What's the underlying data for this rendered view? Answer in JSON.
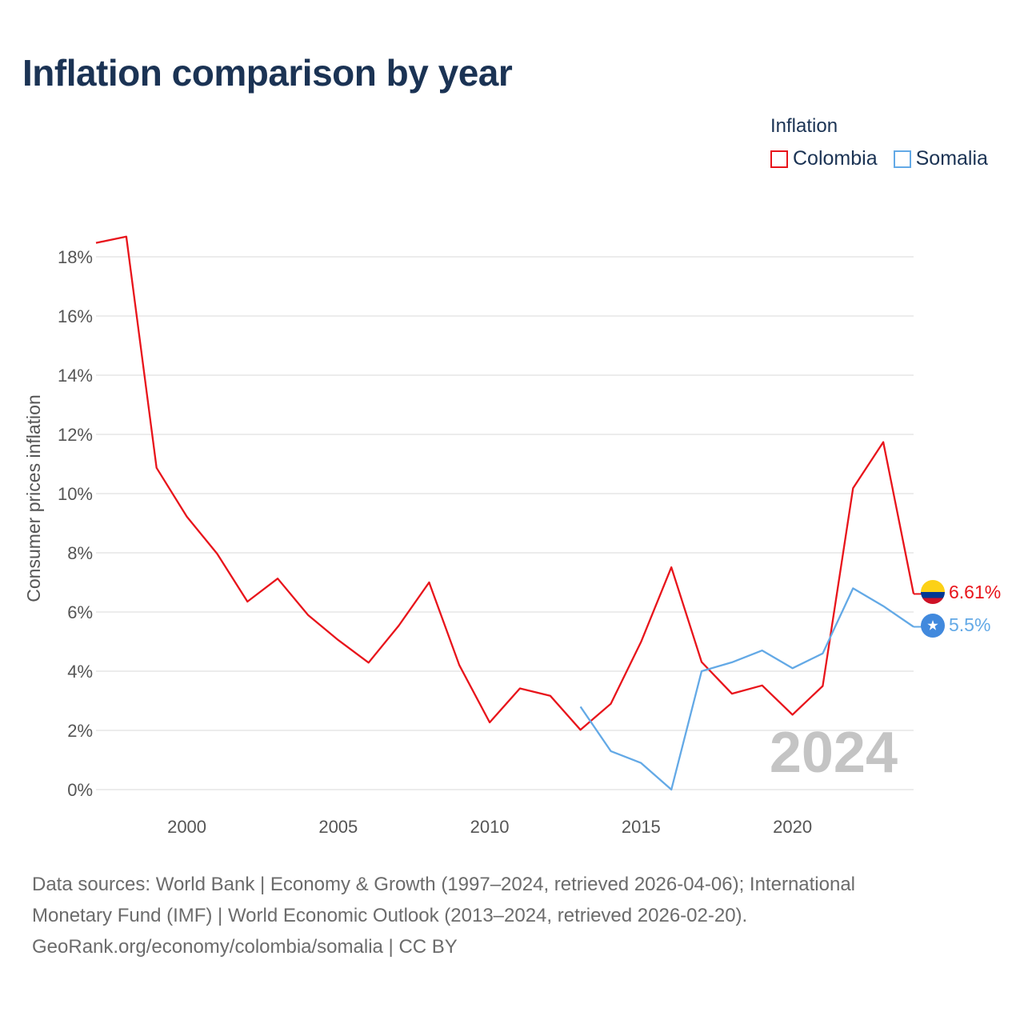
{
  "title": "Inflation comparison by year",
  "legend": {
    "title": "Inflation",
    "items": [
      {
        "label": "Colombia",
        "color": "#e8141b"
      },
      {
        "label": "Somalia",
        "color": "#63a9e6"
      }
    ]
  },
  "chart_data": {
    "type": "line",
    "title": "Inflation comparison by year",
    "ylabel": "Consumer prices inflation",
    "xlabel": "",
    "ylim": [
      0,
      18
    ],
    "xlim": [
      1997,
      2024
    ],
    "y_ticks": [
      0,
      2,
      4,
      6,
      8,
      10,
      12,
      14,
      16,
      18
    ],
    "y_tick_labels": [
      "0%",
      "2%",
      "4%",
      "6%",
      "8%",
      "10%",
      "12%",
      "14%",
      "16%",
      "18%"
    ],
    "x_ticks": [
      2000,
      2005,
      2010,
      2015,
      2020
    ],
    "x_tick_labels": [
      "2000",
      "2005",
      "2010",
      "2015",
      "2020"
    ],
    "grid": true,
    "watermark_year": "2024",
    "series": [
      {
        "name": "Colombia",
        "color": "#e8141b",
        "end_label": "6.61%",
        "x": [
          1997,
          1998,
          1999,
          2000,
          2001,
          2002,
          2003,
          2004,
          2005,
          2006,
          2007,
          2008,
          2009,
          2010,
          2011,
          2012,
          2013,
          2014,
          2015,
          2016,
          2017,
          2018,
          2019,
          2020,
          2021,
          2022,
          2023,
          2024
        ],
        "values": [
          18.47,
          18.68,
          10.87,
          9.22,
          7.97,
          6.35,
          7.13,
          5.9,
          5.05,
          4.29,
          5.54,
          7.0,
          4.2,
          2.27,
          3.42,
          3.17,
          2.02,
          2.9,
          4.99,
          7.51,
          4.31,
          3.24,
          3.52,
          2.53,
          3.5,
          10.18,
          11.74,
          6.61
        ]
      },
      {
        "name": "Somalia",
        "color": "#63a9e6",
        "end_label": "5.5%",
        "x": [
          2013,
          2014,
          2015,
          2016,
          2017,
          2018,
          2019,
          2020,
          2021,
          2022,
          2023,
          2024
        ],
        "values": [
          2.8,
          1.3,
          0.9,
          0.0,
          4.0,
          4.3,
          4.7,
          4.1,
          4.6,
          6.8,
          6.2,
          5.5
        ]
      }
    ]
  },
  "footer": {
    "line1": "Data sources: World Bank | Economy & Growth (1997–2024, retrieved 2026-04-06); International",
    "line2": "Monetary Fund (IMF) | World Economic Outlook (2013–2024, retrieved 2026-02-20).",
    "line3": "GeoRank.org/economy/colombia/somalia | CC BY"
  }
}
